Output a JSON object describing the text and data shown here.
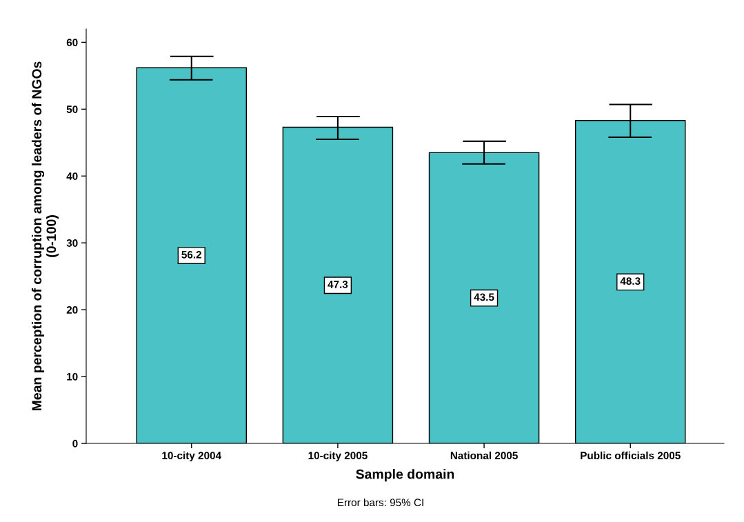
{
  "chart_data": {
    "type": "bar",
    "xlabel": "Sample domain",
    "ylabel": "Mean perception of corruption among leaders of NGOs\n(0-100)",
    "categories": [
      "10-city 2004",
      "10-city 2005",
      "National 2005",
      "Public officials 2005"
    ],
    "values": [
      56.2,
      47.3,
      43.5,
      48.3
    ],
    "errors": [
      [
        54.4,
        57.9
      ],
      [
        45.5,
        48.9
      ],
      [
        41.8,
        45.2
      ],
      [
        45.8,
        50.7
      ]
    ],
    "color": "#4bc2c5",
    "data_labels": true,
    "ylim": [
      0,
      62
    ],
    "yticks": [
      0,
      10,
      20,
      30,
      40,
      50,
      60
    ],
    "grid": false,
    "annotations": [
      "Error bars: 95% CI"
    ]
  }
}
